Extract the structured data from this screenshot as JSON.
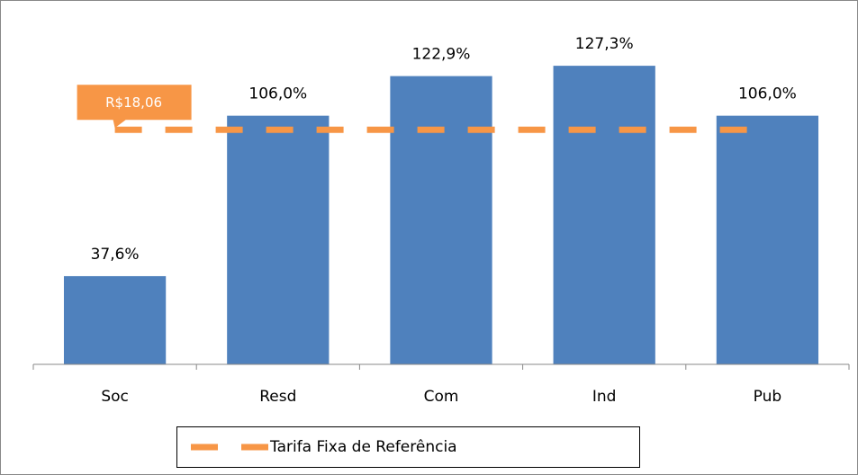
{
  "chart_data": {
    "type": "bar",
    "categories": [
      "Soc",
      "Resd",
      "Com",
      "Ind",
      "Pub"
    ],
    "values": [
      37.6,
      106.0,
      122.9,
      127.3,
      106.0
    ],
    "value_labels": [
      "37,6%",
      "106,0%",
      "122,9%",
      "127,3%",
      "106,0%"
    ],
    "color": "#4f81bd",
    "ylim": [
      0,
      140
    ],
    "series": [
      {
        "name": "Tarifa Fixa de Referência",
        "type": "line",
        "color": "#f79646",
        "dashed": true,
        "values": [
          100,
          100,
          100,
          100,
          100
        ]
      }
    ],
    "annotations": [
      {
        "text": "R$18,06",
        "color": "#f79646"
      }
    ],
    "legend": "bottom"
  }
}
